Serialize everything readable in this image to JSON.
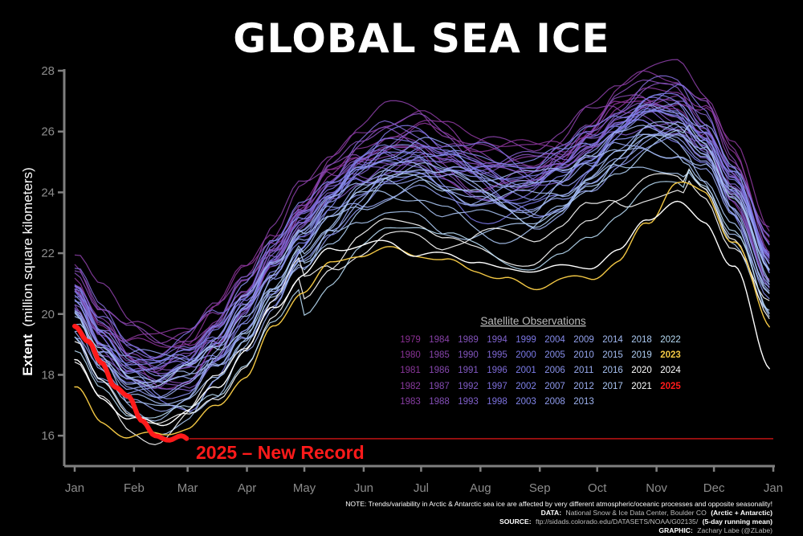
{
  "title": "GLOBAL SEA ICE",
  "colors": {
    "background": "#000000",
    "record_2025": "#ff1a1a",
    "year_2023": "#f2c744",
    "axis": "#7f7f7f",
    "early_years": "#8a2f92",
    "mid_years": "#7a7ae8",
    "late_years": "#b8dcf5"
  },
  "chart_data": {
    "type": "line",
    "ylabel_bold": "Extent",
    "ylabel_rest": "(million square kilometers)",
    "xlabel": "",
    "ylim": [
      15,
      28
    ],
    "yticks": [
      16,
      18,
      20,
      22,
      24,
      26,
      28
    ],
    "month_labels": [
      "Jan",
      "Feb",
      "Mar",
      "Apr",
      "May",
      "Jun",
      "Jul",
      "Aug",
      "Sep",
      "Oct",
      "Nov",
      "Dec",
      "Jan"
    ],
    "x_days": [
      1,
      32,
      60,
      91,
      121,
      152,
      182,
      213,
      244,
      274,
      305,
      335,
      366
    ],
    "grid": false,
    "legend_placement": "center-right",
    "record_min": 15.9,
    "annotation": "2025 – New Record",
    "climatology_days": [
      1,
      15,
      30,
      45,
      60,
      75,
      90,
      105,
      120,
      135,
      150,
      165,
      180,
      195,
      210,
      225,
      240,
      255,
      270,
      285,
      300,
      315,
      330,
      345,
      365
    ],
    "climatology_values": [
      20.4,
      19.0,
      18.1,
      17.8,
      18.1,
      19.0,
      20.2,
      21.6,
      22.9,
      23.9,
      24.6,
      25.0,
      25.1,
      24.7,
      24.4,
      24.3,
      24.3,
      24.7,
      25.4,
      26.1,
      26.5,
      26.4,
      25.6,
      24.0,
      21.4
    ],
    "series": [
      {
        "name": "2025",
        "x": [
          1,
          8,
          15,
          22,
          29,
          36,
          43,
          50,
          57,
          60
        ],
        "values": [
          19.6,
          19.1,
          18.4,
          17.6,
          17.3,
          16.5,
          16.0,
          15.85,
          16.0,
          15.9
        ]
      },
      {
        "name": "2023",
        "x": [
          1,
          15,
          30,
          45,
          60,
          75,
          90,
          105,
          120,
          135,
          150,
          165,
          180,
          195,
          210,
          225,
          240,
          255,
          270,
          285,
          300,
          315,
          330,
          345,
          365
        ],
        "values": [
          17.6,
          16.4,
          16.0,
          16.0,
          16.3,
          16.9,
          18.0,
          19.5,
          20.8,
          21.6,
          22.0,
          22.1,
          22.0,
          21.7,
          21.5,
          21.1,
          20.9,
          21.1,
          21.2,
          21.7,
          23.0,
          24.3,
          24.0,
          22.4,
          19.6
        ]
      },
      {
        "name": "2024",
        "x": [
          1,
          15,
          30,
          45,
          60,
          75,
          90,
          105,
          120,
          135,
          150,
          165,
          180,
          195,
          210,
          225,
          240,
          255,
          270,
          285,
          300,
          315,
          330,
          345,
          365
        ],
        "values": [
          18.4,
          17.3,
          16.5,
          16.4,
          16.8,
          17.6,
          18.8,
          20.2,
          21.3,
          22.1,
          22.3,
          22.3,
          22.0,
          21.9,
          21.8,
          21.4,
          21.5,
          21.5,
          21.6,
          22.0,
          23.2,
          23.6,
          23.1,
          21.5,
          18.3
        ]
      }
    ],
    "legend": {
      "title": "Satellite Observations",
      "rows": [
        [
          "1979",
          "1984",
          "1989",
          "1994",
          "1999",
          "2004",
          "2009",
          "2014",
          "2018",
          "2022"
        ],
        [
          "1980",
          "1985",
          "1990",
          "1995",
          "2000",
          "2005",
          "2010",
          "2015",
          "2019",
          "2023"
        ],
        [
          "1981",
          "1986",
          "1991",
          "1996",
          "2001",
          "2006",
          "2011",
          "2016",
          "2020",
          "2024"
        ],
        [
          "1982",
          "1987",
          "1992",
          "1997",
          "2002",
          "2007",
          "2012",
          "2017",
          "2021",
          "2025"
        ],
        [
          "1983",
          "1988",
          "1993",
          "1998",
          "2003",
          "2008",
          "2013"
        ]
      ]
    }
  },
  "footer": {
    "note": "NOTE: Trends/variability in Arctic & Antarctic sea ice are affected by very different atmospheric/oceanic processes and opposite seasonality!",
    "data_label": "DATA:",
    "data_value": "National Snow & Ice Data Center, Boulder CO",
    "data_suffix": "(Arctic + Antarctic)",
    "source_label": "SOURCE:",
    "source_value": "ftp://sidads.colorado.edu/DATASETS/NOAA/G02135/",
    "source_suffix": "(5-day running mean)",
    "graphic_label": "GRAPHIC:",
    "graphic_value": "Zachary Labe (@ZLabe)"
  }
}
